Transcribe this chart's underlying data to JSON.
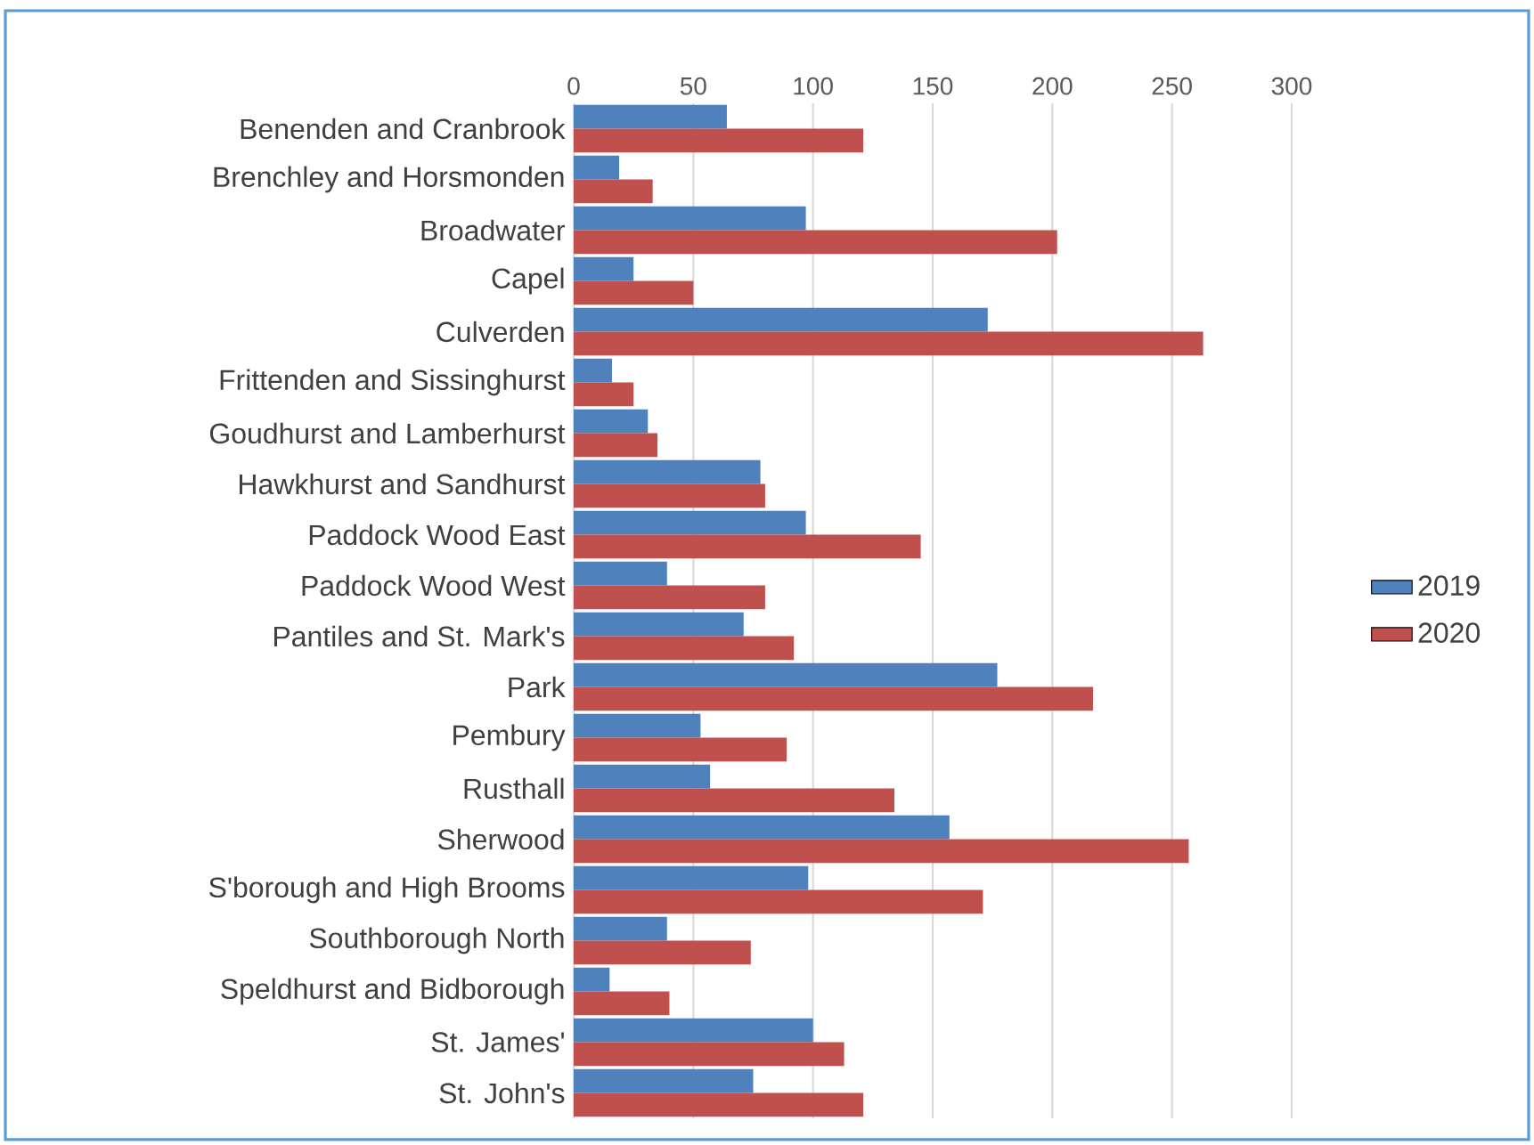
{
  "chart_data": {
    "type": "bar",
    "orientation": "horizontal",
    "categories": [
      "Benenden and Cranbrook",
      "Brenchley and Horsmonden",
      "Broadwater",
      "Capel",
      "Culverden",
      "Frittenden and Sissinghurst",
      "Goudhurst and Lamberhurst",
      "Hawkhurst and Sandhurst",
      "Paddock Wood East",
      "Paddock Wood West",
      "Pantiles and St. Mark's",
      "Park",
      "Pembury",
      "Rusthall",
      "Sherwood",
      "S'borough and High Brooms",
      "Southborough North",
      "Speldhurst and Bidborough",
      "St. James'",
      "St. John's"
    ],
    "series": [
      {
        "name": "2019",
        "color": "#4f81bd",
        "values": [
          64,
          19,
          97,
          25,
          173,
          16,
          31,
          78,
          97,
          39,
          71,
          177,
          53,
          57,
          157,
          98,
          39,
          15,
          100,
          75
        ]
      },
      {
        "name": "2020",
        "color": "#c0504d",
        "values": [
          121,
          33,
          202,
          50,
          263,
          25,
          35,
          80,
          145,
          80,
          92,
          217,
          89,
          134,
          257,
          171,
          74,
          40,
          113,
          121
        ]
      }
    ],
    "xlim": [
      0,
      300
    ],
    "xticks": [
      0,
      50,
      100,
      150,
      200,
      250,
      300
    ],
    "grid": "x",
    "legend": "right"
  }
}
